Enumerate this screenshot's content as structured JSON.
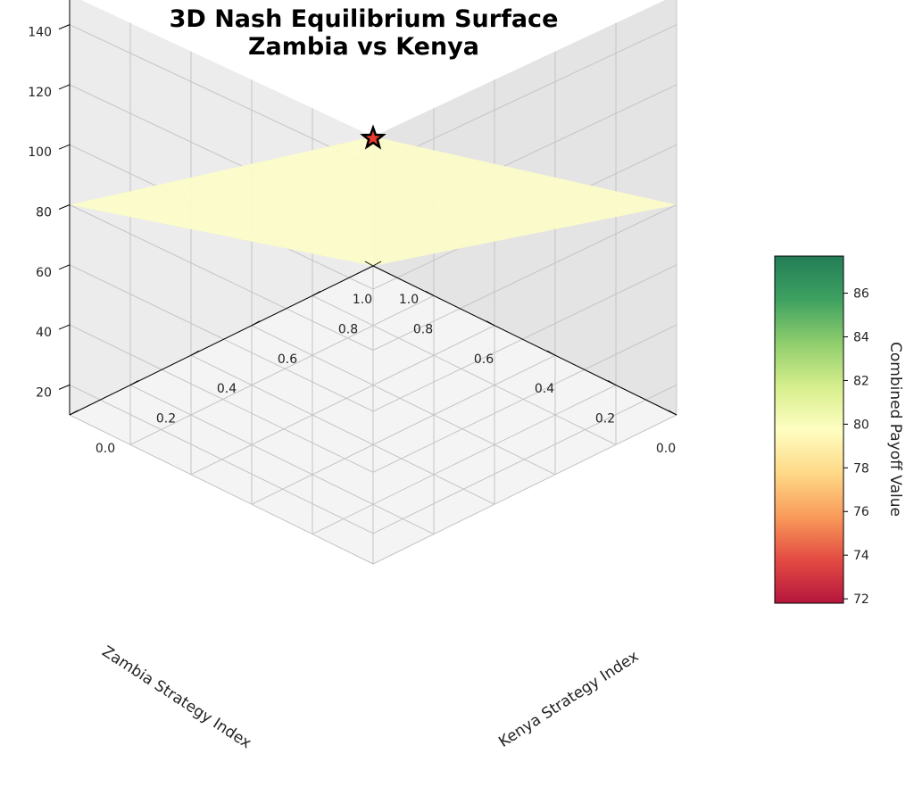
{
  "chart_data": {
    "type": "surface3d",
    "title_lines": [
      "3D Nash Equilibrium Surface",
      "Zambia vs Kenya"
    ],
    "xlabel": "Zambia Strategy Index",
    "ylabel": "Kenya Strategy Index",
    "zlabel": "",
    "x_ticks": [
      "0.0",
      "0.2",
      "0.4",
      "0.6",
      "0.8",
      "1.0"
    ],
    "y_ticks": [
      "0.0",
      "0.2",
      "0.4",
      "0.6",
      "0.8",
      "1.0"
    ],
    "z_ticks": [
      "20",
      "40",
      "60",
      "80",
      "100",
      "120",
      "140"
    ],
    "xlim": [
      0,
      1
    ],
    "ylim": [
      0,
      1
    ],
    "zlim": [
      10,
      150
    ],
    "surface": {
      "x": [
        0,
        1
      ],
      "y": [
        0,
        1
      ],
      "z": [
        [
          150,
          80
        ],
        [
          80,
          10
        ]
      ],
      "color": "#fcfcc8"
    },
    "equilibrium_point": {
      "x": 0,
      "y": 0,
      "z": 150,
      "marker": "star",
      "color": "#e63b2e"
    },
    "colorbar": {
      "label": "Combined Payoff Value",
      "ticks": [
        "72",
        "74",
        "76",
        "78",
        "80",
        "82",
        "84",
        "86"
      ],
      "range": [
        71.8,
        87.7
      ],
      "colormap": [
        "#b5163e",
        "#e34b42",
        "#f99b5a",
        "#fed987",
        "#fefec1",
        "#d6ee8c",
        "#8fcd6d",
        "#3da160",
        "#237d57"
      ]
    },
    "grid": true
  }
}
